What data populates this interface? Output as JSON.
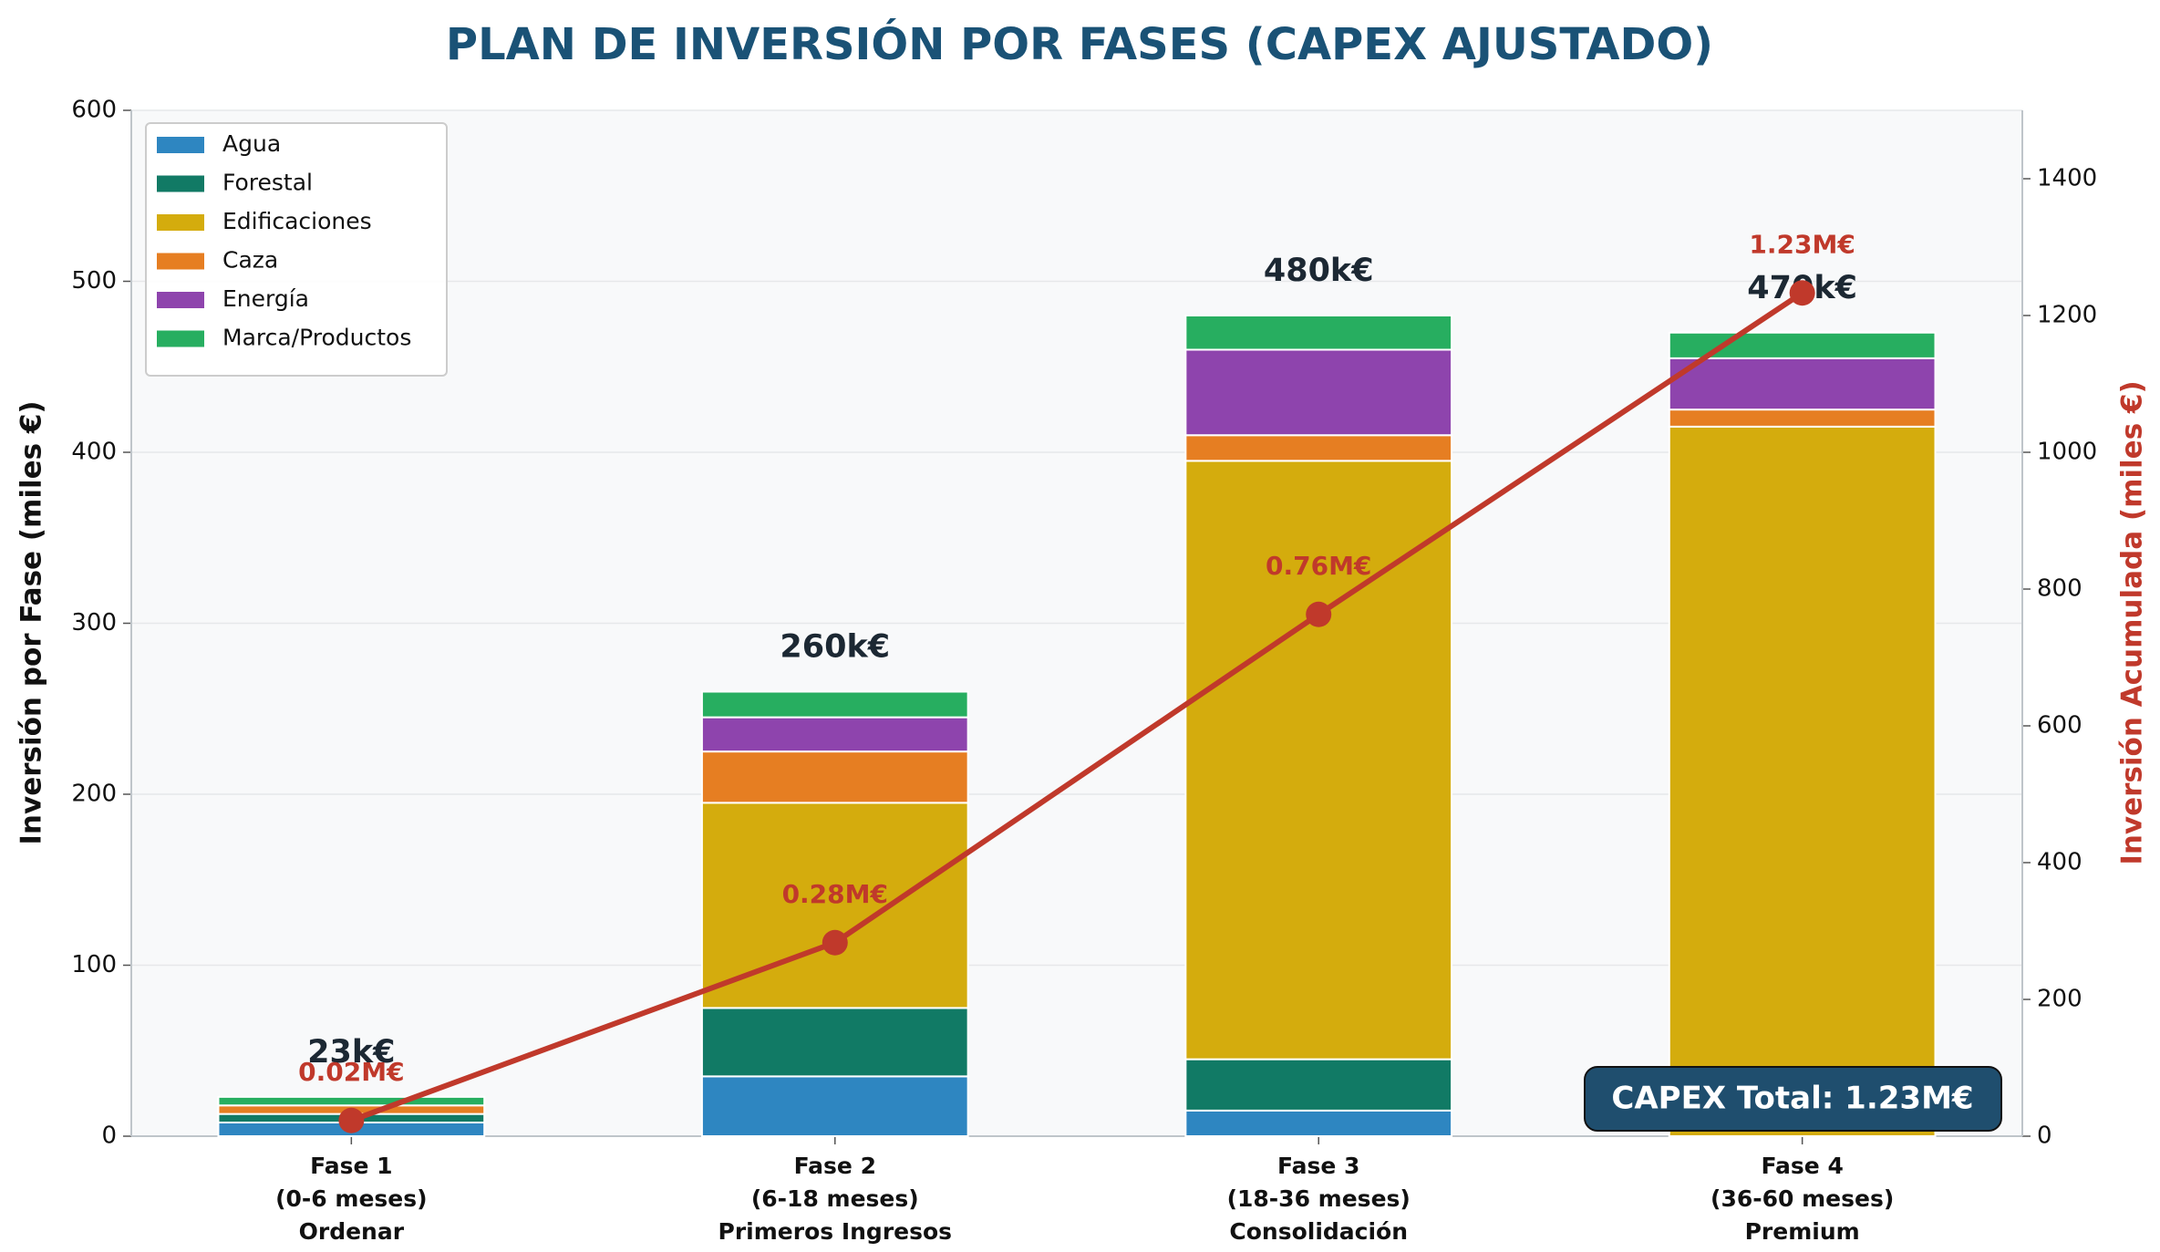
{
  "chart_data": {
    "type": "bar",
    "stacked": true,
    "title": "PLAN DE INVERSIÓN POR FASES (CAPEX AJUSTADO)",
    "y_label": "Inversión por Fase (miles €)",
    "y2_label": "Inversión Acumulada (miles €)",
    "categories": [
      [
        "Fase 1",
        "(0-6 meses)",
        "Ordenar"
      ],
      [
        "Fase 2",
        "(6-18 meses)",
        "Primeros Ingresos"
      ],
      [
        "Fase 3",
        "(18-36 meses)",
        "Consolidación"
      ],
      [
        "Fase 4",
        "(36-60 meses)",
        "Premium"
      ]
    ],
    "series": [
      {
        "name": "Agua",
        "color": "#2e86c1",
        "values": [
          8,
          35,
          15,
          0
        ]
      },
      {
        "name": "Forestal",
        "color": "#117a65",
        "values": [
          5,
          40,
          30,
          0
        ]
      },
      {
        "name": "Edificaciones",
        "color": "#d4ac0d",
        "values": [
          0,
          120,
          350,
          415
        ]
      },
      {
        "name": "Caza",
        "color": "#e67e22",
        "values": [
          5,
          30,
          15,
          10
        ]
      },
      {
        "name": "Energía",
        "color": "#8e44ad",
        "values": [
          0,
          20,
          50,
          30
        ]
      },
      {
        "name": "Marca/Productos",
        "color": "#27ae60",
        "values": [
          5,
          15,
          20,
          15
        ]
      }
    ],
    "totals": {
      "values": [
        23,
        260,
        480,
        470
      ],
      "value_labels": [
        "23k€",
        "260k€",
        "480k€",
        "470k€"
      ]
    },
    "cumulative": {
      "type": "line",
      "axis": "y2",
      "color": "#c0392b",
      "values": [
        23,
        283,
        763,
        1233
      ],
      "value_labels": [
        "0.02M€",
        "0.28M€",
        "0.76M€",
        "1.23M€"
      ]
    },
    "annotation": "CAPEX Total: 1.23M€",
    "ylim": [
      0,
      600
    ],
    "yticks": [
      0,
      100,
      200,
      300,
      400,
      500,
      600
    ],
    "y2lim": [
      0,
      1500
    ],
    "y2ticks": [
      0,
      200,
      400,
      600,
      800,
      1000,
      1200,
      1400
    ],
    "grid": true,
    "legend": "upper left"
  }
}
